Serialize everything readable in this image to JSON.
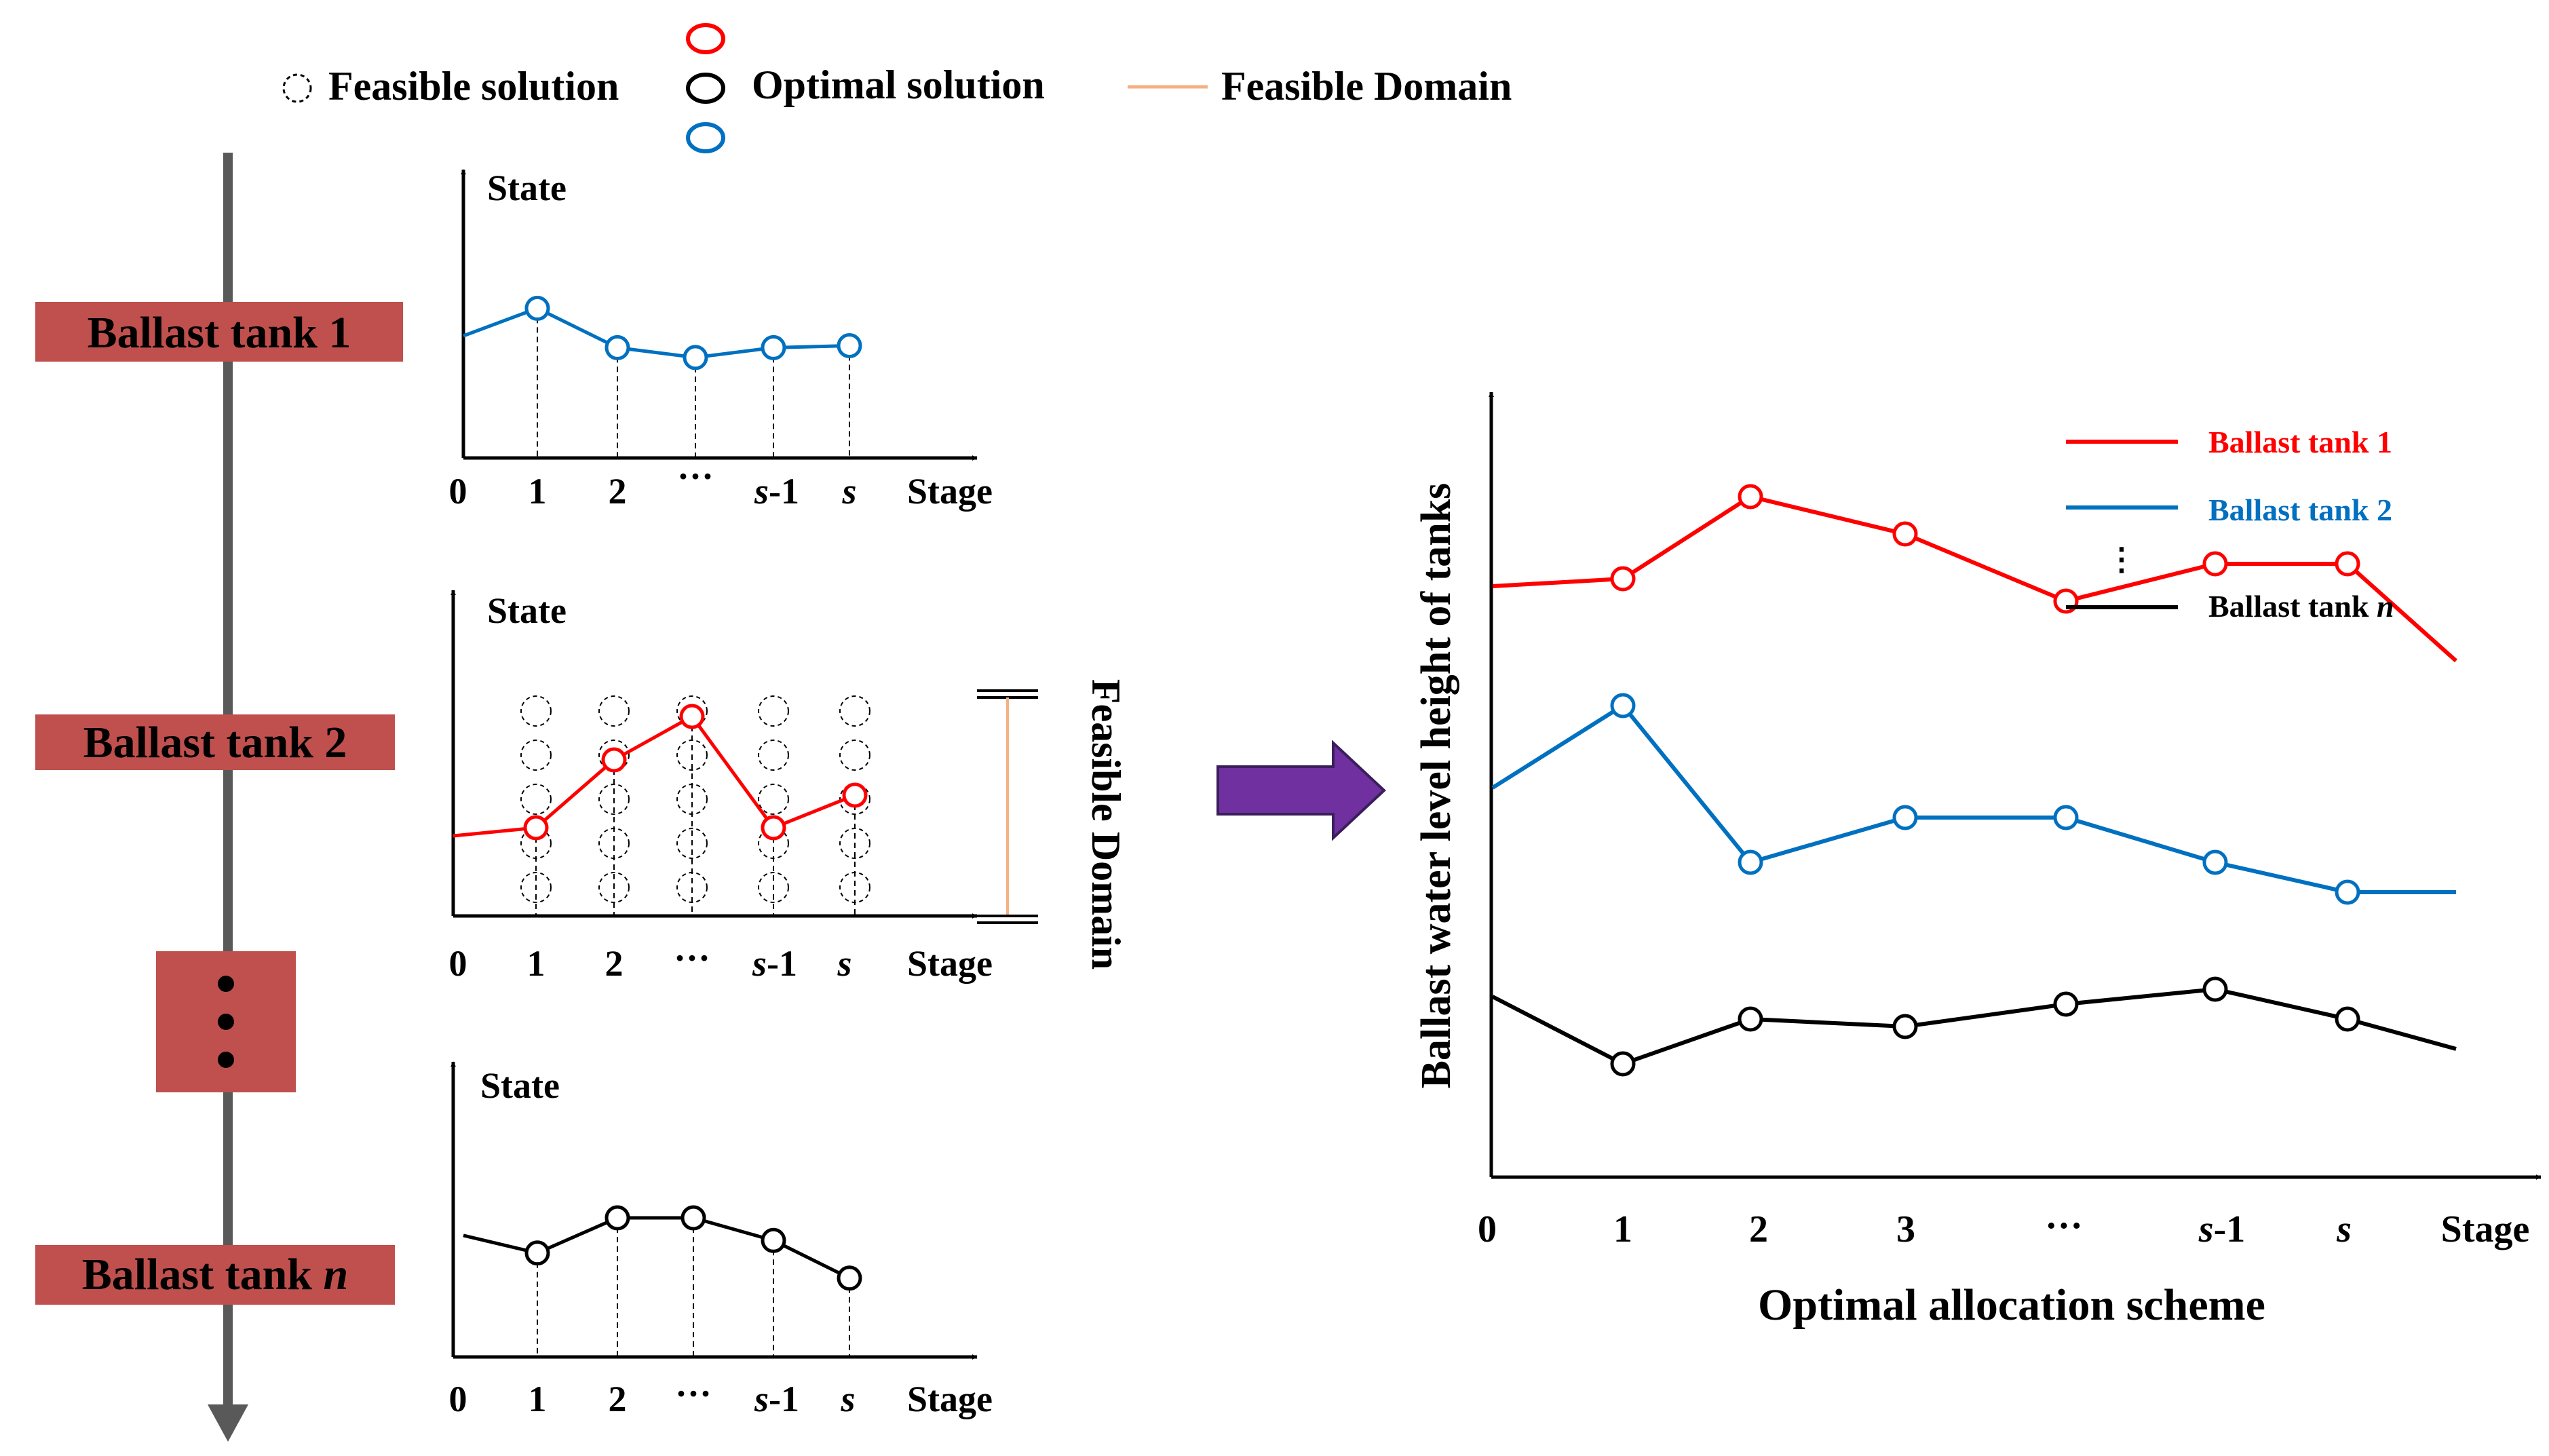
{
  "legend_top": {
    "feasible": "Feasible solution",
    "optimal": "Optimal solution",
    "domain": "Feasible Domain"
  },
  "tanks": {
    "tank1": "Ballast tank 1",
    "tank2": "Ballast tank 2",
    "tankn_prefix": "Ballast tank ",
    "tankn_var": "n"
  },
  "small_charts": {
    "ylabel": "State",
    "xlabel": "Stage",
    "ticks_a": [
      "0",
      "1",
      "2",
      "···",
      "s",
      "s"
    ],
    "ticks_b": [
      "0",
      "1",
      "2",
      "···",
      "s",
      "s"
    ],
    "tick_s_suffix": "-1",
    "domain_label": "Feasible Domain"
  },
  "big_chart": {
    "ylabel": "Ballast water level height of tanks",
    "xlabel": "Optimal allocation scheme",
    "ticks": [
      "0",
      "1",
      "2",
      "3",
      "···",
      "s",
      "s",
      "Stage"
    ],
    "tick_s_suffix": "-1",
    "legend": {
      "tank1": "Ballast tank 1",
      "tank2": "Ballast tank 2",
      "ellipsis": "⋮",
      "tankn_prefix": "Ballast tank ",
      "tankn_var": "n"
    }
  },
  "colors": {
    "red": "#ff0000",
    "blue": "#0070c0",
    "black": "#000000",
    "orange": "#f4b183",
    "tank_box": "#c0504d",
    "arrow": "#7030a0",
    "timeline": "#595959"
  },
  "chart_data": [
    {
      "type": "line",
      "title": "Ballast tank 1",
      "xlabel": "Stage",
      "ylabel": "State",
      "x": [
        "0",
        "1",
        "2",
        "···",
        "s-1",
        "s"
      ],
      "series": [
        {
          "name": "Optimal solution",
          "color": "blue",
          "values": [
            5.0,
            6.4,
            4.4,
            3.9,
            4.4,
            4.5
          ]
        }
      ]
    },
    {
      "type": "line",
      "title": "Ballast tank 2",
      "xlabel": "Stage",
      "ylabel": "State",
      "x": [
        "0",
        "1",
        "2",
        "···",
        "s-1",
        "s"
      ],
      "series": [
        {
          "name": "Optimal solution",
          "color": "red",
          "values": [
            2.2,
            2.5,
            5.0,
            6.6,
            2.5,
            3.7
          ]
        }
      ],
      "feasible_states_per_stage": [
        0,
        5,
        5,
        5,
        5,
        5
      ]
    },
    {
      "type": "line",
      "title": "Ballast tank n",
      "xlabel": "Stage",
      "ylabel": "State",
      "x": [
        "0",
        "1",
        "2",
        "···",
        "s-1",
        "s"
      ],
      "series": [
        {
          "name": "Optimal solution",
          "color": "black",
          "values": [
            4.3,
            3.6,
            5.0,
            5.0,
            4.1,
            2.6
          ]
        }
      ]
    },
    {
      "type": "line",
      "title": "Optimal allocation scheme",
      "xlabel": "Optimal allocation scheme",
      "ylabel": "Ballast water level height of tanks",
      "x": [
        "0",
        "1",
        "2",
        "3",
        "···",
        "s-1",
        "s",
        "Stage"
      ],
      "series": [
        {
          "name": "Ballast tank 1",
          "color": "red",
          "values": [
            7.6,
            7.7,
            8.8,
            8.3,
            7.4,
            7.9,
            7.9,
            6.6
          ]
        },
        {
          "name": "Ballast tank 2",
          "color": "blue",
          "values": [
            4.9,
            6.0,
            3.9,
            4.5,
            4.5,
            3.9,
            3.5,
            3.5
          ]
        },
        {
          "name": "Ballast tank n",
          "color": "black",
          "values": [
            2.1,
            1.2,
            1.8,
            1.7,
            2.0,
            2.2,
            1.8,
            1.4
          ]
        }
      ]
    }
  ]
}
